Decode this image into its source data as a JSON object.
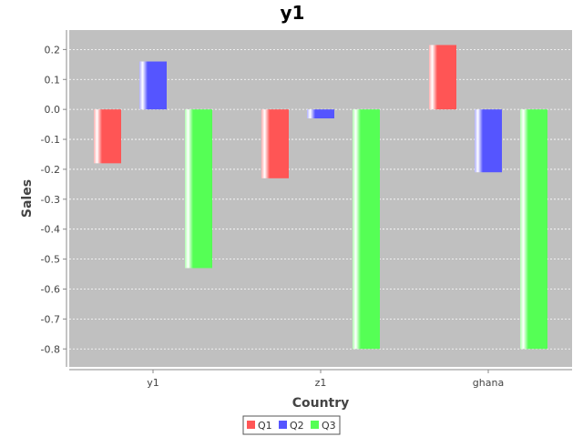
{
  "chart_data": {
    "type": "bar",
    "title": "y1",
    "xlabel": "Country",
    "ylabel": "Sales",
    "categories": [
      "y1",
      "z1",
      "ghana"
    ],
    "series": [
      {
        "name": "Q1",
        "color": "#ff5555",
        "values": [
          -0.18,
          -0.23,
          0.215
        ]
      },
      {
        "name": "Q2",
        "color": "#5555ff",
        "values": [
          0.16,
          -0.03,
          -0.21
        ]
      },
      {
        "name": "Q3",
        "color": "#55ff55",
        "values": [
          -0.53,
          -0.8,
          -0.8
        ]
      }
    ],
    "ylim": [
      -0.86,
      0.265
    ],
    "yticks": [
      "0.2",
      "0.1",
      "0.0",
      "-0.1",
      "-0.2",
      "-0.3",
      "-0.4",
      "-0.5",
      "-0.6",
      "-0.7",
      "-0.8"
    ],
    "ytick_values": [
      0.2,
      0.1,
      0.0,
      -0.1,
      -0.2,
      -0.3,
      -0.4,
      -0.5,
      -0.6,
      -0.7,
      -0.8
    ],
    "grid": true,
    "legend": "bottom-center",
    "plot_background": "#c0c0c0"
  }
}
